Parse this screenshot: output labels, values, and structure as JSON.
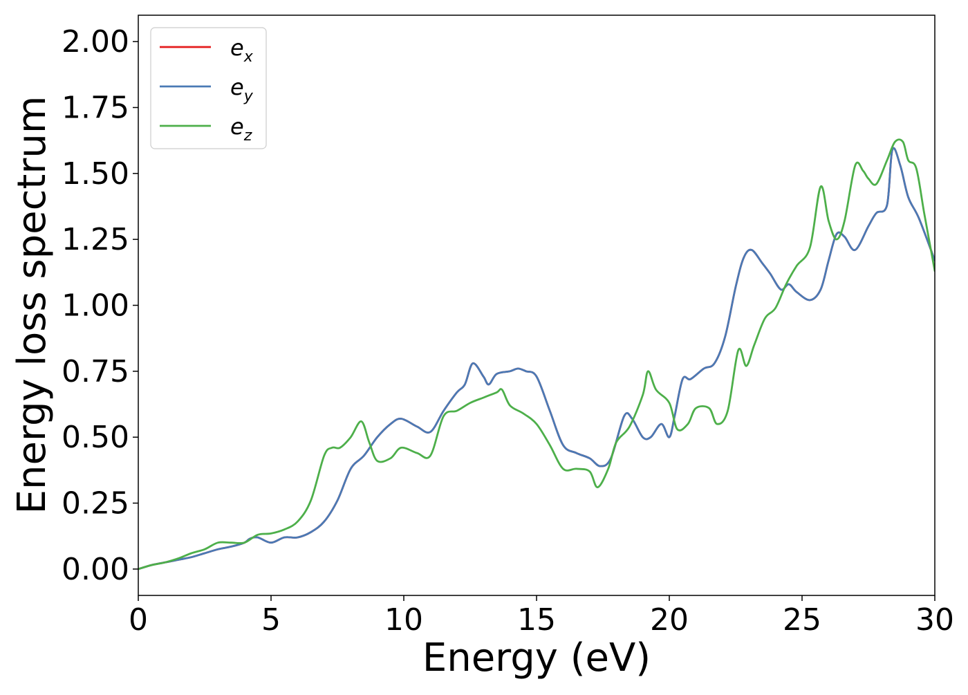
{
  "chart_data": {
    "type": "line",
    "xlabel": "Energy (eV)",
    "ylabel": "Energy loss spectrum",
    "xlim": [
      0,
      30
    ],
    "ylim": [
      -0.1,
      2.1
    ],
    "grid": false,
    "legend_position": "top-left",
    "xticks": [
      0,
      5,
      10,
      15,
      20,
      25,
      30
    ],
    "xtick_labels": [
      "0",
      "5",
      "10",
      "15",
      "20",
      "25",
      "30"
    ],
    "yticks": [
      0,
      0.25,
      0.5,
      0.75,
      1.0,
      1.25,
      1.5,
      1.75,
      2.0
    ],
    "ytick_labels": [
      "0.00",
      "0.25",
      "0.50",
      "0.75",
      "1.00",
      "1.25",
      "1.50",
      "1.75",
      "2.00"
    ],
    "series": [
      {
        "name": "e",
        "subscript": "x",
        "color": "#e41a1c",
        "x": [
          0,
          0.5,
          1,
          1.5,
          2,
          2.5,
          3,
          3.5,
          4,
          4.2,
          4.5,
          5,
          5.5,
          6,
          6.5,
          7,
          7.5,
          8,
          8.5,
          9,
          9.5,
          9.9,
          10.5,
          11,
          11.5,
          12,
          12.3,
          12.6,
          13,
          13.2,
          13.5,
          14,
          14.3,
          14.6,
          15,
          15.5,
          16,
          16.5,
          17,
          17.4,
          17.8,
          18.3,
          18.6,
          19,
          19.3,
          19.7,
          20,
          20.2,
          20.5,
          20.8,
          21.3,
          21.7,
          22.1,
          22.5,
          22.8,
          23.1,
          23.5,
          23.8,
          24.2,
          24.5,
          24.8,
          25.3,
          25.7,
          26,
          26.3,
          26.6,
          27,
          27.5,
          27.8,
          28.2,
          28.4,
          28.7,
          29,
          29.4,
          30
        ],
        "y": [
          0.0,
          0.015,
          0.025,
          0.035,
          0.045,
          0.06,
          0.075,
          0.085,
          0.1,
          0.115,
          0.12,
          0.1,
          0.12,
          0.12,
          0.14,
          0.18,
          0.26,
          0.38,
          0.43,
          0.5,
          0.55,
          0.57,
          0.54,
          0.52,
          0.6,
          0.67,
          0.7,
          0.78,
          0.73,
          0.7,
          0.74,
          0.75,
          0.76,
          0.75,
          0.73,
          0.6,
          0.47,
          0.44,
          0.42,
          0.39,
          0.42,
          0.58,
          0.57,
          0.5,
          0.5,
          0.55,
          0.5,
          0.58,
          0.72,
          0.72,
          0.76,
          0.78,
          0.88,
          1.07,
          1.18,
          1.21,
          1.16,
          1.12,
          1.06,
          1.08,
          1.05,
          1.02,
          1.06,
          1.17,
          1.27,
          1.26,
          1.21,
          1.3,
          1.35,
          1.38,
          1.59,
          1.53,
          1.41,
          1.33,
          1.17
        ]
      },
      {
        "name": "e",
        "subscript": "y",
        "color": "#4a7ab5",
        "x": [
          0,
          0.5,
          1,
          1.5,
          2,
          2.5,
          3,
          3.5,
          4,
          4.2,
          4.5,
          5,
          5.5,
          6,
          6.5,
          7,
          7.5,
          8,
          8.5,
          9,
          9.5,
          9.9,
          10.5,
          11,
          11.5,
          12,
          12.3,
          12.6,
          13,
          13.2,
          13.5,
          14,
          14.3,
          14.6,
          15,
          15.5,
          16,
          16.5,
          17,
          17.4,
          17.8,
          18.3,
          18.6,
          19,
          19.3,
          19.7,
          20,
          20.2,
          20.5,
          20.8,
          21.3,
          21.7,
          22.1,
          22.5,
          22.8,
          23.1,
          23.5,
          23.8,
          24.2,
          24.5,
          24.8,
          25.3,
          25.7,
          26,
          26.3,
          26.6,
          27,
          27.5,
          27.8,
          28.2,
          28.4,
          28.7,
          29,
          29.4,
          30
        ],
        "y": [
          0.0,
          0.015,
          0.025,
          0.035,
          0.045,
          0.06,
          0.075,
          0.085,
          0.1,
          0.115,
          0.12,
          0.1,
          0.12,
          0.12,
          0.14,
          0.18,
          0.26,
          0.38,
          0.43,
          0.5,
          0.55,
          0.57,
          0.54,
          0.52,
          0.6,
          0.67,
          0.7,
          0.78,
          0.73,
          0.7,
          0.74,
          0.75,
          0.76,
          0.75,
          0.73,
          0.6,
          0.47,
          0.44,
          0.42,
          0.39,
          0.42,
          0.58,
          0.57,
          0.5,
          0.5,
          0.55,
          0.5,
          0.58,
          0.72,
          0.72,
          0.76,
          0.78,
          0.88,
          1.07,
          1.18,
          1.21,
          1.16,
          1.12,
          1.06,
          1.08,
          1.05,
          1.02,
          1.06,
          1.17,
          1.27,
          1.26,
          1.21,
          1.3,
          1.35,
          1.38,
          1.59,
          1.53,
          1.41,
          1.33,
          1.17
        ]
      },
      {
        "name": "e",
        "subscript": "z",
        "color": "#4daf4a",
        "x": [
          0,
          0.5,
          1,
          1.5,
          2,
          2.5,
          3,
          3.5,
          4,
          4.5,
          5,
          5.5,
          6,
          6.5,
          7,
          7.3,
          7.6,
          8,
          8.4,
          8.7,
          9,
          9.5,
          9.9,
          10.5,
          11,
          11.5,
          12,
          12.5,
          13,
          13.5,
          13.7,
          14,
          14.5,
          15,
          15.5,
          16,
          16.5,
          17,
          17.3,
          17.7,
          18,
          18.5,
          19,
          19.2,
          19.5,
          20,
          20.3,
          20.7,
          21,
          21.5,
          21.8,
          22.2,
          22.6,
          22.9,
          23.2,
          23.6,
          24,
          24.4,
          24.8,
          25.3,
          25.7,
          26,
          26.3,
          26.6,
          27,
          27.3,
          27.5,
          27.8,
          28.2,
          28.5,
          28.8,
          29,
          29.3,
          29.6,
          30
        ],
        "y": [
          0.0,
          0.015,
          0.025,
          0.04,
          0.06,
          0.075,
          0.1,
          0.1,
          0.1,
          0.13,
          0.135,
          0.15,
          0.18,
          0.26,
          0.43,
          0.46,
          0.46,
          0.5,
          0.56,
          0.48,
          0.41,
          0.42,
          0.46,
          0.44,
          0.43,
          0.58,
          0.6,
          0.63,
          0.65,
          0.67,
          0.68,
          0.62,
          0.59,
          0.55,
          0.47,
          0.38,
          0.38,
          0.37,
          0.31,
          0.38,
          0.48,
          0.54,
          0.66,
          0.75,
          0.68,
          0.63,
          0.53,
          0.55,
          0.61,
          0.61,
          0.55,
          0.6,
          0.83,
          0.77,
          0.85,
          0.95,
          0.99,
          1.08,
          1.15,
          1.22,
          1.45,
          1.32,
          1.25,
          1.32,
          1.53,
          1.51,
          1.48,
          1.46,
          1.55,
          1.62,
          1.62,
          1.55,
          1.52,
          1.35,
          1.13
        ]
      }
    ]
  }
}
